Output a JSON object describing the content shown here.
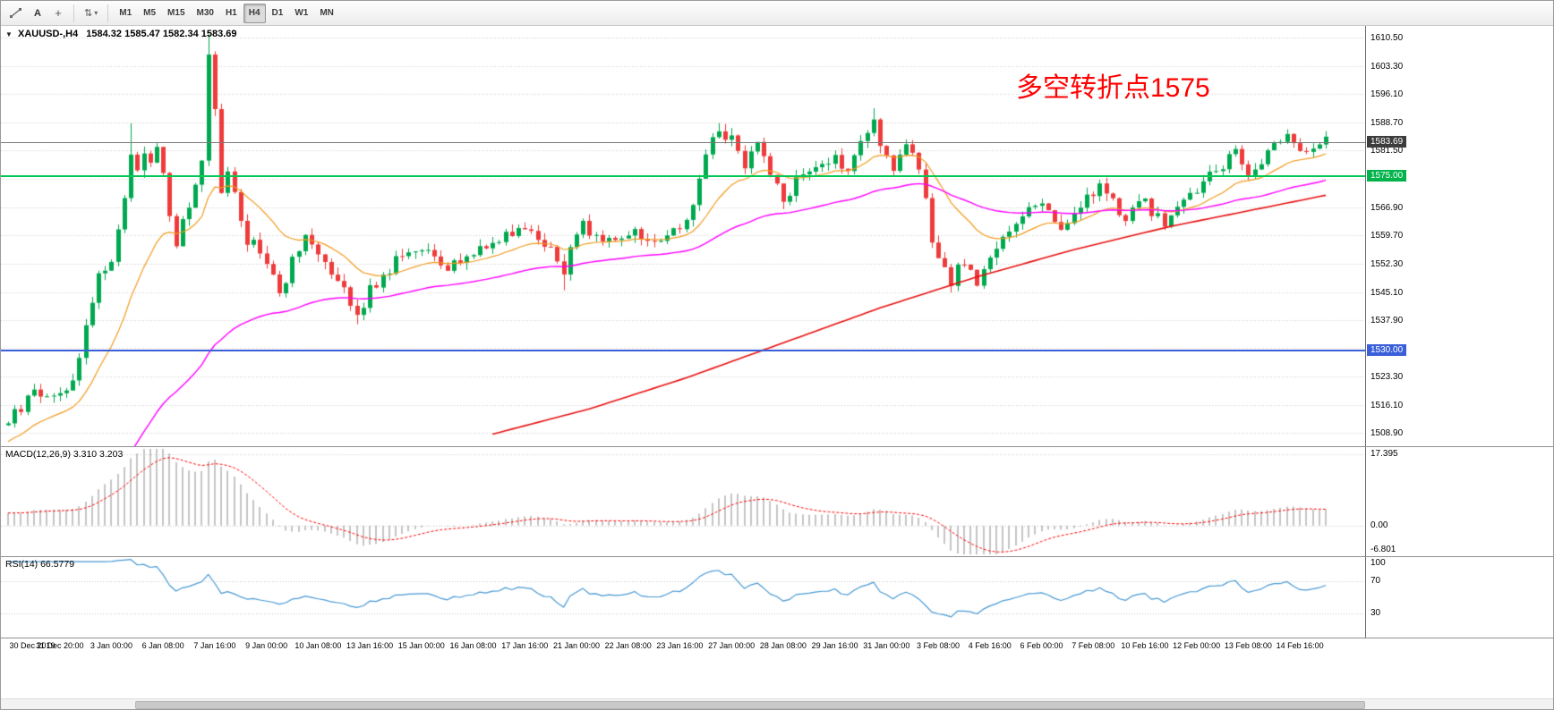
{
  "toolbar": {
    "text_tool_label": "A",
    "crosshair_glyph": "+",
    "cycle_glyph": "⇅",
    "caret_glyph": "▾",
    "timeframes": [
      {
        "label": "M1"
      },
      {
        "label": "M5"
      },
      {
        "label": "M15"
      },
      {
        "label": "M30"
      },
      {
        "label": "H1"
      },
      {
        "label": "H4",
        "active": true
      },
      {
        "label": "D1"
      },
      {
        "label": "W1"
      },
      {
        "label": "MN"
      }
    ]
  },
  "chart": {
    "dropdown_marker": "▼",
    "symbol_period": "XAUUSD-,H4",
    "ohlc_text": "1584.32 1585.47 1582.34 1583.69",
    "annotation": {
      "text": "多空转折点1575",
      "color": "#ff0000"
    },
    "price_max": 1613.6,
    "price_min": 1505.4,
    "y_ticks": [
      "1610.50",
      "1603.30",
      "1596.10",
      "1588.70",
      "1581.50",
      "1574.30",
      "1566.90",
      "1559.70",
      "1552.30",
      "1545.10",
      "1537.90",
      "1530.70",
      "1523.30",
      "1516.10",
      "1508.90"
    ],
    "lines": [
      {
        "price": 1583.69,
        "label": "1583.69",
        "line_color": "#7a7a7a",
        "tag_color": "#3c3c3c",
        "thickness": 1
      },
      {
        "price": 1575.0,
        "label": "1575.00",
        "line_color": "#00c853",
        "tag_color": "#00b34a",
        "thickness": 2
      },
      {
        "price": 1530.0,
        "label": "1530.00",
        "line_color": "#3a5fd9",
        "tag_color": "#3a5fd9",
        "thickness": 2
      }
    ]
  },
  "chart_data": {
    "type": "candlestick",
    "symbol": "XAUUSD-",
    "timeframe": "H4",
    "last_close": 1583.69,
    "candles_n": 205,
    "wiggle": 1.5,
    "close_waypoints": [
      [
        0,
        1512
      ],
      [
        2,
        1515
      ],
      [
        4,
        1520
      ],
      [
        6,
        1518
      ],
      [
        8,
        1519
      ],
      [
        10,
        1522
      ],
      [
        12,
        1536
      ],
      [
        14,
        1550
      ],
      [
        16,
        1553
      ],
      [
        18,
        1570
      ],
      [
        19,
        1581
      ],
      [
        20,
        1575
      ],
      [
        21,
        1582
      ],
      [
        22,
        1578
      ],
      [
        23,
        1583
      ],
      [
        24,
        1575
      ],
      [
        25,
        1565
      ],
      [
        26,
        1558
      ],
      [
        27,
        1563
      ],
      [
        28,
        1567
      ],
      [
        29,
        1572
      ],
      [
        30,
        1578
      ],
      [
        31,
        1606
      ],
      [
        32,
        1592
      ],
      [
        33,
        1572
      ],
      [
        34,
        1575
      ],
      [
        35,
        1570
      ],
      [
        36,
        1562
      ],
      [
        37,
        1558
      ],
      [
        38,
        1559
      ],
      [
        39,
        1556
      ],
      [
        40,
        1553
      ],
      [
        41,
        1549
      ],
      [
        42,
        1546
      ],
      [
        43,
        1548
      ],
      [
        44,
        1553
      ],
      [
        45,
        1557
      ],
      [
        46,
        1560
      ],
      [
        47,
        1558
      ],
      [
        48,
        1556
      ],
      [
        50,
        1551
      ],
      [
        52,
        1547
      ],
      [
        54,
        1539
      ],
      [
        55,
        1541
      ],
      [
        56,
        1546
      ],
      [
        58,
        1549
      ],
      [
        60,
        1553
      ],
      [
        62,
        1556
      ],
      [
        64,
        1557
      ],
      [
        66,
        1553
      ],
      [
        68,
        1551
      ],
      [
        70,
        1553
      ],
      [
        72,
        1556
      ],
      [
        74,
        1557
      ],
      [
        76,
        1559
      ],
      [
        78,
        1561
      ],
      [
        80,
        1562
      ],
      [
        82,
        1559
      ],
      [
        84,
        1557
      ],
      [
        86,
        1549
      ],
      [
        87,
        1556
      ],
      [
        88,
        1559
      ],
      [
        89,
        1562
      ],
      [
        90,
        1561
      ],
      [
        92,
        1558
      ],
      [
        94,
        1559
      ],
      [
        96,
        1561
      ],
      [
        98,
        1559
      ],
      [
        100,
        1558
      ],
      [
        102,
        1560
      ],
      [
        104,
        1562
      ],
      [
        106,
        1568
      ],
      [
        107,
        1574
      ],
      [
        108,
        1580
      ],
      [
        109,
        1584
      ],
      [
        110,
        1586
      ],
      [
        111,
        1583
      ],
      [
        112,
        1586
      ],
      [
        113,
        1581
      ],
      [
        114,
        1578
      ],
      [
        115,
        1582
      ],
      [
        116,
        1583
      ],
      [
        117,
        1579
      ],
      [
        118,
        1576
      ],
      [
        119,
        1572
      ],
      [
        120,
        1568
      ],
      [
        121,
        1571
      ],
      [
        122,
        1574
      ],
      [
        124,
        1576
      ],
      [
        126,
        1578
      ],
      [
        128,
        1581
      ],
      [
        129,
        1577
      ],
      [
        130,
        1575
      ],
      [
        131,
        1579
      ],
      [
        132,
        1583
      ],
      [
        133,
        1587
      ],
      [
        134,
        1589
      ],
      [
        135,
        1584
      ],
      [
        136,
        1580
      ],
      [
        137,
        1577
      ],
      [
        138,
        1579
      ],
      [
        139,
        1582
      ],
      [
        140,
        1580
      ],
      [
        141,
        1576
      ],
      [
        142,
        1568
      ],
      [
        143,
        1558
      ],
      [
        144,
        1553
      ],
      [
        145,
        1550
      ],
      [
        146,
        1548
      ],
      [
        147,
        1551
      ],
      [
        148,
        1553
      ],
      [
        149,
        1550
      ],
      [
        150,
        1548
      ],
      [
        151,
        1550
      ],
      [
        152,
        1553
      ],
      [
        153,
        1556
      ],
      [
        154,
        1559
      ],
      [
        155,
        1561
      ],
      [
        156,
        1563
      ],
      [
        157,
        1565
      ],
      [
        158,
        1567
      ],
      [
        159,
        1568
      ],
      [
        160,
        1569
      ],
      [
        161,
        1566
      ],
      [
        162,
        1563
      ],
      [
        163,
        1561
      ],
      [
        164,
        1563
      ],
      [
        165,
        1566
      ],
      [
        166,
        1568
      ],
      [
        167,
        1569
      ],
      [
        168,
        1570
      ],
      [
        169,
        1572
      ],
      [
        170,
        1571
      ],
      [
        171,
        1568
      ],
      [
        172,
        1566
      ],
      [
        173,
        1564
      ],
      [
        174,
        1566
      ],
      [
        175,
        1568
      ],
      [
        176,
        1569
      ],
      [
        177,
        1566
      ],
      [
        178,
        1564
      ],
      [
        179,
        1563
      ],
      [
        180,
        1565
      ],
      [
        181,
        1567
      ],
      [
        182,
        1569
      ],
      [
        183,
        1570
      ],
      [
        184,
        1571
      ],
      [
        185,
        1573
      ],
      [
        186,
        1575
      ],
      [
        187,
        1577
      ],
      [
        188,
        1578
      ],
      [
        189,
        1580
      ],
      [
        190,
        1581
      ],
      [
        191,
        1578
      ],
      [
        192,
        1575
      ],
      [
        193,
        1577
      ],
      [
        194,
        1579
      ],
      [
        195,
        1581
      ],
      [
        196,
        1583
      ],
      [
        197,
        1585
      ],
      [
        198,
        1586
      ],
      [
        199,
        1584
      ],
      [
        200,
        1582
      ],
      [
        201,
        1581
      ],
      [
        202,
        1583
      ],
      [
        203,
        1584
      ],
      [
        204,
        1583.7
      ]
    ],
    "high_overrides": [
      [
        19,
        1588.5
      ],
      [
        31,
        1611.5
      ],
      [
        110,
        1588.6
      ],
      [
        134,
        1592.4
      ]
    ],
    "low_overrides": [
      [
        54,
        1536.8
      ],
      [
        86,
        1545.5
      ],
      [
        150,
        1546.5
      ]
    ],
    "ma_fast": {
      "period": 16,
      "seed": 1506,
      "color": "#f29a1f"
    },
    "ma_mid": {
      "period": 55,
      "seed": 1468,
      "color": "#ff00ff"
    },
    "ma_slow": {
      "start": 75,
      "color": "#e81010",
      "waypoints": [
        [
          75,
          1508.5
        ],
        [
          90,
          1515
        ],
        [
          105,
          1523
        ],
        [
          120,
          1532
        ],
        [
          135,
          1541
        ],
        [
          150,
          1549
        ],
        [
          165,
          1556
        ],
        [
          180,
          1562
        ],
        [
          192,
          1566
        ],
        [
          204,
          1570
        ]
      ]
    },
    "colors": {
      "up": "#00a94f",
      "down": "#ee3b3b",
      "grid": "#c9c9c9"
    },
    "x_label_step": 8,
    "x_labels": [
      "30 Dec 2019",
      "31 Dec 20:00",
      "3 Jan 00:00",
      "6 Jan 08:00",
      "7 Jan 16:00",
      "9 Jan 00:00",
      "10 Jan 08:00",
      "13 Jan 16:00",
      "15 Jan 00:00",
      "16 Jan 08:00",
      "17 Jan 16:00",
      "21 Jan 00:00",
      "22 Jan 08:00",
      "23 Jan 16:00",
      "27 Jan 00:00",
      "28 Jan 08:00",
      "29 Jan 16:00",
      "31 Jan 00:00",
      "3 Feb 08:00",
      "4 Feb 16:00",
      "6 Feb 00:00",
      "7 Feb 08:00",
      "10 Feb 16:00",
      "12 Feb 00:00",
      "13 Feb 08:00",
      "14 Feb 16:00"
    ]
  },
  "macd": {
    "label": "MACD(12,26,9) 3.310 3.203",
    "fast": 12,
    "slow": 26,
    "signal_period": 9,
    "max": 17.395,
    "min": -6.801,
    "axis": [
      "17.395",
      "0.00",
      "-6.801"
    ],
    "hist_color": "#c4c4c4",
    "signal_color": "#ff0000"
  },
  "rsi": {
    "label": "RSI(14) 66.5779",
    "period": 14,
    "current": 66.5779,
    "axis": [
      "100",
      "70",
      "30"
    ],
    "levels": [
      70,
      30
    ],
    "line_color": "#4899d4",
    "level_color": "#bccabc"
  }
}
